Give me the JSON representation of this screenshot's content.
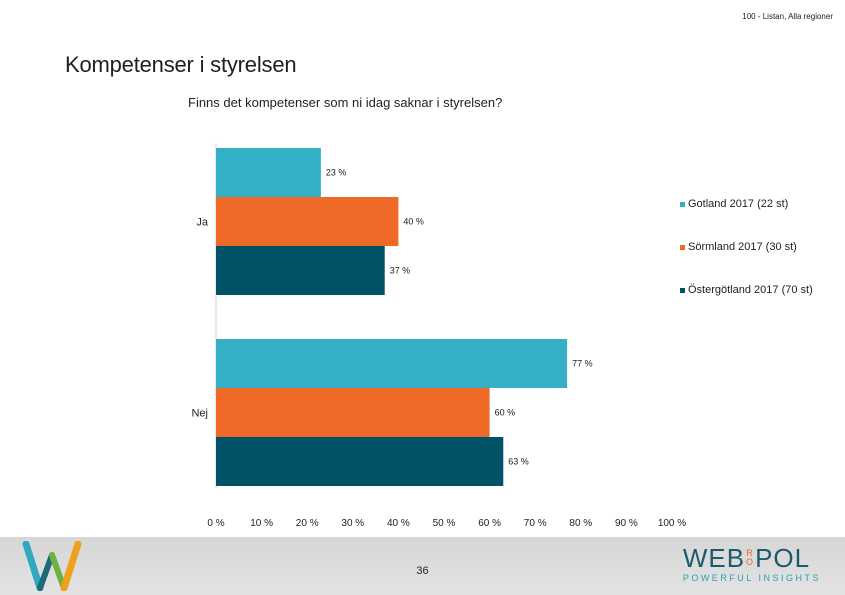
{
  "header": {
    "top_note": "100 - Listan, Alla regioner",
    "slide_title": "Kompetenser i styrelsen"
  },
  "chart_data": {
    "type": "bar",
    "orientation": "horizontal",
    "title": "Finns det kompetenser som ni idag saknar i styrelsen?",
    "categories": [
      "Ja",
      "Nej"
    ],
    "series": [
      {
        "name": "Gotland 2017 (22 st)",
        "color": "#34b0c6",
        "values": [
          23,
          77
        ]
      },
      {
        "name": "Sörmland 2017 (30 st)",
        "color": "#ee6a26",
        "values": [
          40,
          60
        ]
      },
      {
        "name": "Östergötland 2017 (70 st)",
        "color": "#005367",
        "values": [
          37,
          63
        ]
      }
    ],
    "data_labels": [
      [
        "23 %",
        "77 %"
      ],
      [
        "40 %",
        "60 %"
      ],
      [
        "37 %",
        "63 %"
      ]
    ],
    "x_ticks": [
      "0 %",
      "10 %",
      "20 %",
      "30 %",
      "40 %",
      "50 %",
      "60 %",
      "70 %",
      "80 %",
      "90 %",
      "100 %"
    ],
    "xlim": [
      0,
      100
    ],
    "grid": false,
    "legend_position": "right"
  },
  "footer": {
    "page_number": "36",
    "brand_left": "WEB",
    "brand_ro_top": "R",
    "brand_ro_bottom": "O",
    "brand_right": "POL",
    "tagline": "POWERFUL INSIGHTS"
  }
}
